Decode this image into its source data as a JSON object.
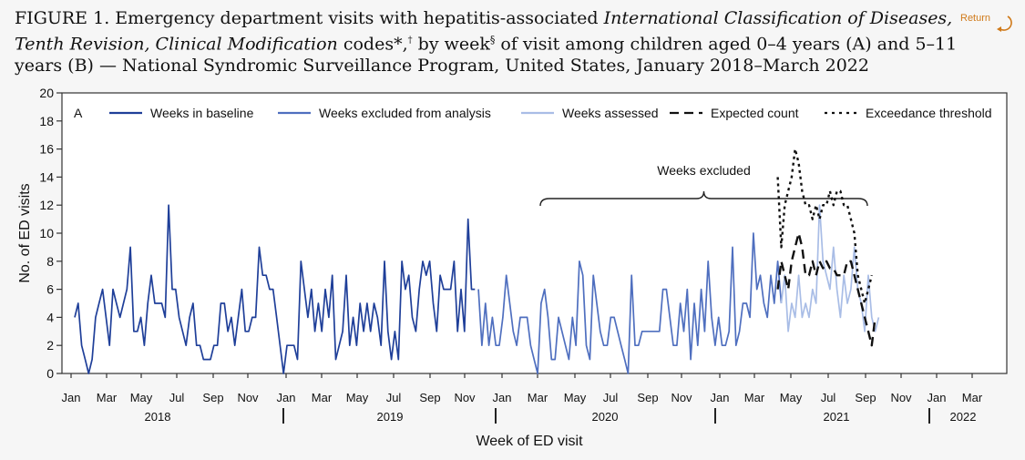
{
  "header": {
    "fig_label": "FIGURE 1",
    "title_part1": ". Emergency department visits with hepatitis-associated ",
    "title_italic1": "International Classification of Diseases, Tenth Revision, Clinical Modification",
    "title_part2": " codes*,",
    "title_sup1": "†",
    "title_part3": " by week",
    "title_sup2": "§",
    "title_part4": " of visit among children aged 0–4 years (A) and 5–11 years (B) — National Syndromic Surveillance Program, United States, January 2018–March 2022"
  },
  "return_button": {
    "label": "Return"
  },
  "chart_data": {
    "type": "line",
    "panel_label": "A",
    "ylabel": "No. of ED visits",
    "xlabel": "Week of ED visit",
    "ylim": [
      0,
      20
    ],
    "yticks": [
      0,
      2,
      4,
      6,
      8,
      10,
      12,
      14,
      16,
      18,
      20
    ],
    "month_labels": [
      "Jan",
      "Mar",
      "May",
      "Jul",
      "Sep",
      "Nov",
      "Jan",
      "Mar",
      "May",
      "Jul",
      "Sep",
      "Nov",
      "Jan",
      "Mar",
      "May",
      "Jul",
      "Sep",
      "Nov",
      "Jan",
      "Mar",
      "May",
      "Jul",
      "Sep",
      "Nov",
      "Jan",
      "Mar"
    ],
    "year_labels": [
      "2018",
      "2019",
      "2020",
      "2021",
      "2022"
    ],
    "annotation": "Weeks excluded",
    "legend": [
      {
        "name": "Weeks in baseline",
        "style": "solid",
        "color": "#1f3f99"
      },
      {
        "name": "Weeks excluded from analysis",
        "style": "solid",
        "color": "#4f6fbf"
      },
      {
        "name": "Weeks assessed",
        "style": "solid",
        "color": "#a9bde6"
      },
      {
        "name": "Expected count",
        "style": "dashed",
        "color": "#111111"
      },
      {
        "name": "Exceedance threshold",
        "style": "dotted",
        "color": "#111111"
      }
    ],
    "series": [
      {
        "name": "Weeks in baseline",
        "color": "#1f3f99",
        "start_week": 0,
        "values": [
          4,
          5,
          2,
          1,
          0,
          1,
          4,
          5,
          6,
          4,
          2,
          6,
          5,
          4,
          5,
          6,
          9,
          3,
          3,
          4,
          2,
          5,
          7,
          5,
          5,
          5,
          4,
          12,
          6,
          6,
          4,
          3,
          2,
          4,
          5,
          2,
          2,
          1,
          1,
          1,
          2,
          2,
          5,
          5,
          3,
          4,
          2,
          4,
          6,
          3,
          3,
          4,
          4,
          9,
          7,
          7,
          6,
          6,
          4,
          2,
          0,
          2,
          2,
          2,
          1,
          8,
          6,
          4,
          6,
          3,
          5,
          3,
          6,
          4,
          7,
          1,
          2,
          3,
          7,
          2,
          4,
          2,
          5,
          3,
          5,
          3,
          5,
          4,
          2,
          8,
          3,
          1,
          3,
          1,
          8,
          6,
          7,
          4,
          3,
          6,
          8,
          7,
          8,
          5,
          3,
          7,
          6,
          6,
          6,
          8,
          3,
          6,
          3,
          11,
          6,
          6
        ]
      },
      {
        "name": "Weeks excluded from analysis",
        "color": "#4f6fbf",
        "start_week": 116,
        "values": [
          6,
          2,
          5,
          2,
          4,
          2,
          2,
          4,
          7,
          5,
          3,
          2,
          4,
          4,
          4,
          2,
          1,
          0,
          5,
          6,
          4,
          1,
          1,
          4,
          3,
          2,
          1,
          4,
          2,
          8,
          7,
          2,
          1,
          7,
          5,
          3,
          2,
          2,
          4,
          4,
          3,
          2,
          1,
          0,
          7,
          2,
          2,
          3,
          3,
          3,
          3,
          3,
          3,
          6,
          6,
          4,
          2,
          2,
          5,
          3,
          6,
          1,
          5,
          2,
          6,
          3,
          8,
          4,
          2,
          4,
          2,
          2,
          3,
          9,
          2,
          3,
          5,
          5,
          4,
          10,
          6,
          7,
          5,
          4,
          7,
          5,
          8,
          5
        ]
      },
      {
        "name": "Weeks assessed",
        "color": "#a9bde6",
        "start_week": 203,
        "values": [
          5,
          7,
          3,
          5,
          4,
          7,
          4,
          5,
          4,
          6,
          5,
          12,
          8,
          7,
          6,
          9,
          6,
          4,
          7,
          5,
          6,
          9,
          6,
          5,
          3,
          7,
          4,
          3,
          4
        ]
      },
      {
        "name": "Expected count",
        "color": "#111111",
        "style": "dashed",
        "start_week": 202,
        "values": [
          6,
          8,
          7,
          6,
          8,
          9,
          10,
          9,
          7,
          7,
          8,
          7,
          8,
          7.5,
          8,
          7.5,
          7.5,
          7,
          7,
          7,
          8,
          8,
          7,
          6,
          5,
          4,
          3,
          2,
          4
        ]
      },
      {
        "name": "Exceedance threshold",
        "color": "#111111",
        "style": "dotted",
        "start_week": 202,
        "values": [
          14,
          9,
          12,
          13,
          14,
          16,
          15,
          13,
          12,
          12,
          11,
          12,
          11,
          12,
          12,
          13,
          12,
          13,
          13,
          12,
          12,
          11,
          10,
          7,
          6,
          5,
          6,
          7
        ]
      }
    ]
  }
}
